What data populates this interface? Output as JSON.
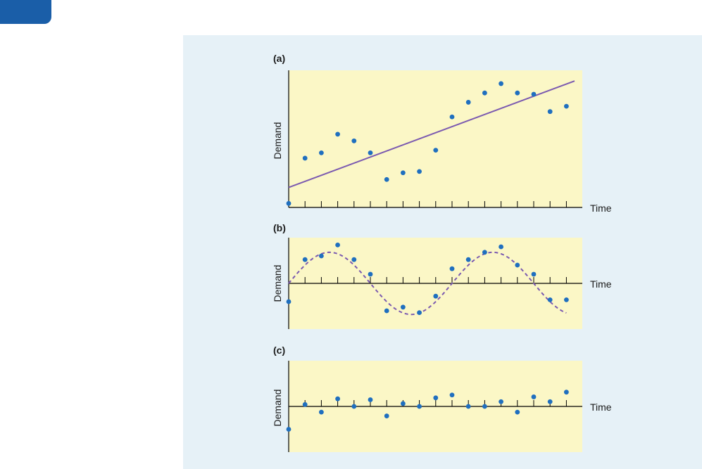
{
  "colors": {
    "figure_bg": "#e6f1f7",
    "plot_bg": "#fbf7c6",
    "point": "#1f6fbf",
    "trend": "#7b5ab0",
    "axis": "#000000",
    "tab": "#1a5ea8"
  },
  "chart_data": [
    {
      "type": "scatter",
      "panel_label": "(a)",
      "xlabel": "Time",
      "ylabel": "Demand",
      "x": [
        0,
        1,
        2,
        3,
        4,
        5,
        6,
        7,
        8,
        9,
        10,
        11,
        12,
        13,
        14,
        15,
        16,
        17
      ],
      "series": [
        {
          "values": [
            0.0,
            3.4,
            3.8,
            5.2,
            4.7,
            3.8,
            1.8,
            2.3,
            2.4,
            4.0,
            6.5,
            7.6,
            8.3,
            9.0,
            8.3,
            8.2,
            6.9,
            7.3
          ]
        }
      ],
      "trend_line": {
        "style": "solid",
        "start": [
          0,
          1.2
        ],
        "end": [
          17.5,
          9.2
        ]
      },
      "x_axis_baseline": "bottom",
      "ylim": [
        -0.3,
        10
      ]
    },
    {
      "type": "scatter",
      "panel_label": "(b)",
      "xlabel": "Time",
      "ylabel": "Demand",
      "x": [
        0,
        1,
        2,
        3,
        4,
        5,
        6,
        7,
        8,
        9,
        10,
        11,
        12,
        13,
        14,
        15,
        16,
        17
      ],
      "series": [
        {
          "values": [
            -1.0,
            1.3,
            1.5,
            2.1,
            1.3,
            0.5,
            -1.5,
            -1.3,
            -1.6,
            -0.7,
            0.8,
            1.3,
            1.7,
            2.0,
            1.0,
            0.5,
            -0.9,
            -0.9
          ]
        }
      ],
      "trend_curve": {
        "style": "dashed",
        "shape": "sinusoid",
        "amplitude": 1.7,
        "period": 10,
        "x_range": [
          0,
          17
        ]
      },
      "x_axis_baseline": "zero",
      "ylim": [
        -2.5,
        2.5
      ]
    },
    {
      "type": "scatter",
      "panel_label": "(c)",
      "xlabel": "Time",
      "ylabel": "Demand",
      "x": [
        0,
        1,
        2,
        3,
        4,
        5,
        6,
        7,
        8,
        9,
        10,
        11,
        12,
        13,
        14,
        15,
        16,
        17
      ],
      "series": [
        {
          "values": [
            -1.2,
            0.1,
            -0.3,
            0.4,
            0.0,
            0.35,
            -0.5,
            0.15,
            0.0,
            0.45,
            0.6,
            0.0,
            0.0,
            0.25,
            -0.3,
            0.5,
            0.25,
            0.75
          ]
        }
      ],
      "x_axis_baseline": "zero",
      "ylim": [
        -2.4,
        2.4
      ]
    }
  ]
}
